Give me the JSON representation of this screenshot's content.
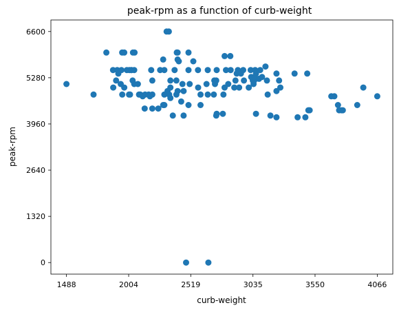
{
  "chart_data": {
    "type": "scatter",
    "title": "peak-rpm as a function of curb-weight",
    "xlabel": "curb-weight",
    "ylabel": "peak-rpm",
    "xlim": [
      1359,
      4195
    ],
    "ylim": [
      -330,
      6930
    ],
    "xticks": [
      1488,
      2004,
      2519,
      3035,
      3550,
      4066
    ],
    "yticks": [
      0,
      1320,
      2640,
      3960,
      5280,
      6600
    ],
    "grid": false,
    "marker_color": "#1f77b4",
    "points": [
      [
        1488,
        5100
      ],
      [
        1874,
        5500
      ],
      [
        1909,
        5500
      ],
      [
        1918,
        5400
      ],
      [
        1944,
        5500
      ],
      [
        1989,
        5500
      ],
      [
        2010,
        5500
      ],
      [
        2024,
        5500
      ],
      [
        2028,
        5500
      ],
      [
        2050,
        5500
      ],
      [
        1967,
        5000
      ],
      [
        1951,
        4800
      ],
      [
        1876,
        5000
      ],
      [
        1900,
        5200
      ],
      [
        2015,
        4800
      ],
      [
        1938,
        5100
      ],
      [
        2007,
        4800
      ],
      [
        2037,
        5200
      ],
      [
        2191,
        5500
      ],
      [
        2265,
        5500
      ],
      [
        2300,
        5500
      ],
      [
        2385,
        5500
      ],
      [
        2734,
        5500
      ],
      [
        2811,
        5500
      ],
      [
        2850,
        5500
      ],
      [
        2910,
        5500
      ],
      [
        2954,
        5500
      ],
      [
        3016,
        5500
      ],
      [
        3053,
        5500
      ],
      [
        3095,
        5500
      ],
      [
        3230,
        5400
      ],
      [
        3060,
        5400
      ],
      [
        2900,
        5400
      ],
      [
        3380,
        5400
      ],
      [
        1713,
        4800
      ],
      [
        1819,
        6000
      ],
      [
        1950,
        6000
      ],
      [
        1967,
        6000
      ],
      [
        2040,
        6000
      ],
      [
        2053,
        6000
      ],
      [
        2319,
        6600
      ],
      [
        2337,
        6600
      ],
      [
        2403,
        6000
      ],
      [
        2410,
        6000
      ],
      [
        2500,
        6000
      ],
      [
        2800,
        5900
      ],
      [
        2847,
        5900
      ],
      [
        2290,
        5800
      ],
      [
        2410,
        5800
      ],
      [
        2420,
        5750
      ],
      [
        2540,
        5750
      ],
      [
        2500,
        5500
      ],
      [
        2579,
        5500
      ],
      [
        2660,
        5500
      ],
      [
        3139,
        5600
      ],
      [
        2326,
        4900
      ],
      [
        2410,
        4900
      ],
      [
        2460,
        4900
      ],
      [
        2714,
        5200
      ],
      [
        2730,
        5200
      ],
      [
        2800,
        5000
      ],
      [
        2880,
        5000
      ],
      [
        2920,
        5000
      ],
      [
        3034,
        5200
      ],
      [
        3045,
        5200
      ],
      [
        3020,
        5300
      ],
      [
        3045,
        5300
      ],
      [
        3085,
        5250
      ],
      [
        3110,
        5300
      ],
      [
        3151,
        5200
      ],
      [
        3252,
        5200
      ],
      [
        3230,
        4900
      ],
      [
        3157,
        4800
      ],
      [
        3262,
        5000
      ],
      [
        3485,
        5400
      ],
      [
        3495,
        4350
      ],
      [
        3505,
        4350
      ],
      [
        3470,
        4150
      ],
      [
        3405,
        4150
      ],
      [
        3230,
        4150
      ],
      [
        3180,
        4200
      ],
      [
        3060,
        4250
      ],
      [
        2734,
        4250
      ],
      [
        2785,
        4250
      ],
      [
        2730,
        4200
      ],
      [
        2460,
        4200
      ],
      [
        2370,
        4200
      ],
      [
        2300,
        4500
      ],
      [
        2500,
        4500
      ],
      [
        2600,
        4500
      ],
      [
        2137,
        4400
      ],
      [
        2200,
        4400
      ],
      [
        2250,
        4400
      ],
      [
        2290,
        4500
      ],
      [
        2350,
        4700
      ],
      [
        2440,
        4600
      ],
      [
        2600,
        4800
      ],
      [
        2660,
        4800
      ],
      [
        2710,
        4800
      ],
      [
        2790,
        4800
      ],
      [
        2100,
        4800
      ],
      [
        2140,
        4800
      ],
      [
        2170,
        4800
      ],
      [
        2200,
        4800
      ],
      [
        2090,
        4800
      ],
      [
        2120,
        4750
      ],
      [
        2180,
        4750
      ],
      [
        2300,
        4800
      ],
      [
        2340,
        4800
      ],
      [
        2400,
        4800
      ],
      [
        2200,
        5200
      ],
      [
        2350,
        5200
      ],
      [
        2400,
        5200
      ],
      [
        2450,
        5100
      ],
      [
        2510,
        5100
      ],
      [
        2580,
        5000
      ],
      [
        2650,
        5100
      ],
      [
        2720,
        5100
      ],
      [
        2350,
        5000
      ],
      [
        2050,
        5100
      ],
      [
        2080,
        5100
      ],
      [
        2830,
        5100
      ],
      [
        3040,
        5100
      ],
      [
        2960,
        5200
      ],
      [
        2935,
        5400
      ],
      [
        2890,
        5200
      ],
      [
        3000,
        5000
      ],
      [
        3710,
        4750
      ],
      [
        3740,
        4500
      ],
      [
        3750,
        4350
      ],
      [
        3770,
        4350
      ],
      [
        3780,
        4350
      ],
      [
        3685,
        4750
      ],
      [
        3950,
        5000
      ],
      [
        3900,
        4500
      ],
      [
        4066,
        4750
      ],
      [
        2480,
        0
      ],
      [
        2665,
        0
      ]
    ]
  }
}
